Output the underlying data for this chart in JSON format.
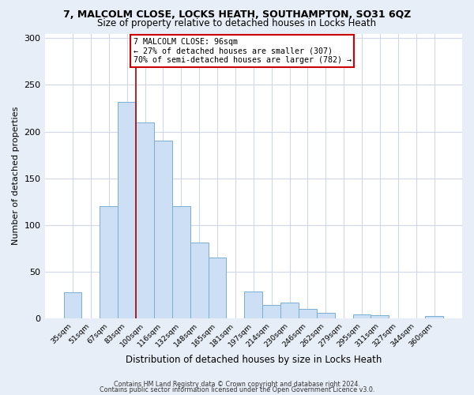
{
  "title": "7, MALCOLM CLOSE, LOCKS HEATH, SOUTHAMPTON, SO31 6QZ",
  "subtitle": "Size of property relative to detached houses in Locks Heath",
  "xlabel": "Distribution of detached houses by size in Locks Heath",
  "ylabel": "Number of detached properties",
  "bar_labels": [
    "35sqm",
    "51sqm",
    "67sqm",
    "83sqm",
    "100sqm",
    "116sqm",
    "132sqm",
    "148sqm",
    "165sqm",
    "181sqm",
    "197sqm",
    "214sqm",
    "230sqm",
    "246sqm",
    "262sqm",
    "279sqm",
    "295sqm",
    "311sqm",
    "327sqm",
    "344sqm",
    "360sqm"
  ],
  "bar_values": [
    28,
    0,
    120,
    232,
    210,
    190,
    120,
    81,
    65,
    0,
    29,
    14,
    17,
    10,
    6,
    0,
    4,
    3,
    0,
    0,
    2
  ],
  "bar_color": "#ccdff5",
  "bar_edge_color": "#7aadd4",
  "vline_color": "#aa0000",
  "annotation_title": "7 MALCOLM CLOSE: 96sqm",
  "annotation_line1": "← 27% of detached houses are smaller (307)",
  "annotation_line2": "70% of semi-detached houses are larger (782) →",
  "annotation_box_facecolor": "#ffffff",
  "annotation_box_edgecolor": "#cc0000",
  "ylim": [
    0,
    305
  ],
  "yticks": [
    0,
    50,
    100,
    150,
    200,
    250,
    300
  ],
  "footer1": "Contains HM Land Registry data © Crown copyright and database right 2024.",
  "footer2": "Contains public sector information licensed under the Open Government Licence v3.0.",
  "fig_bg_color": "#e8eef8",
  "plot_bg_color": "#ffffff",
  "grid_color": "#d0d8e8",
  "title_fontsize": 9.0,
  "subtitle_fontsize": 8.5
}
